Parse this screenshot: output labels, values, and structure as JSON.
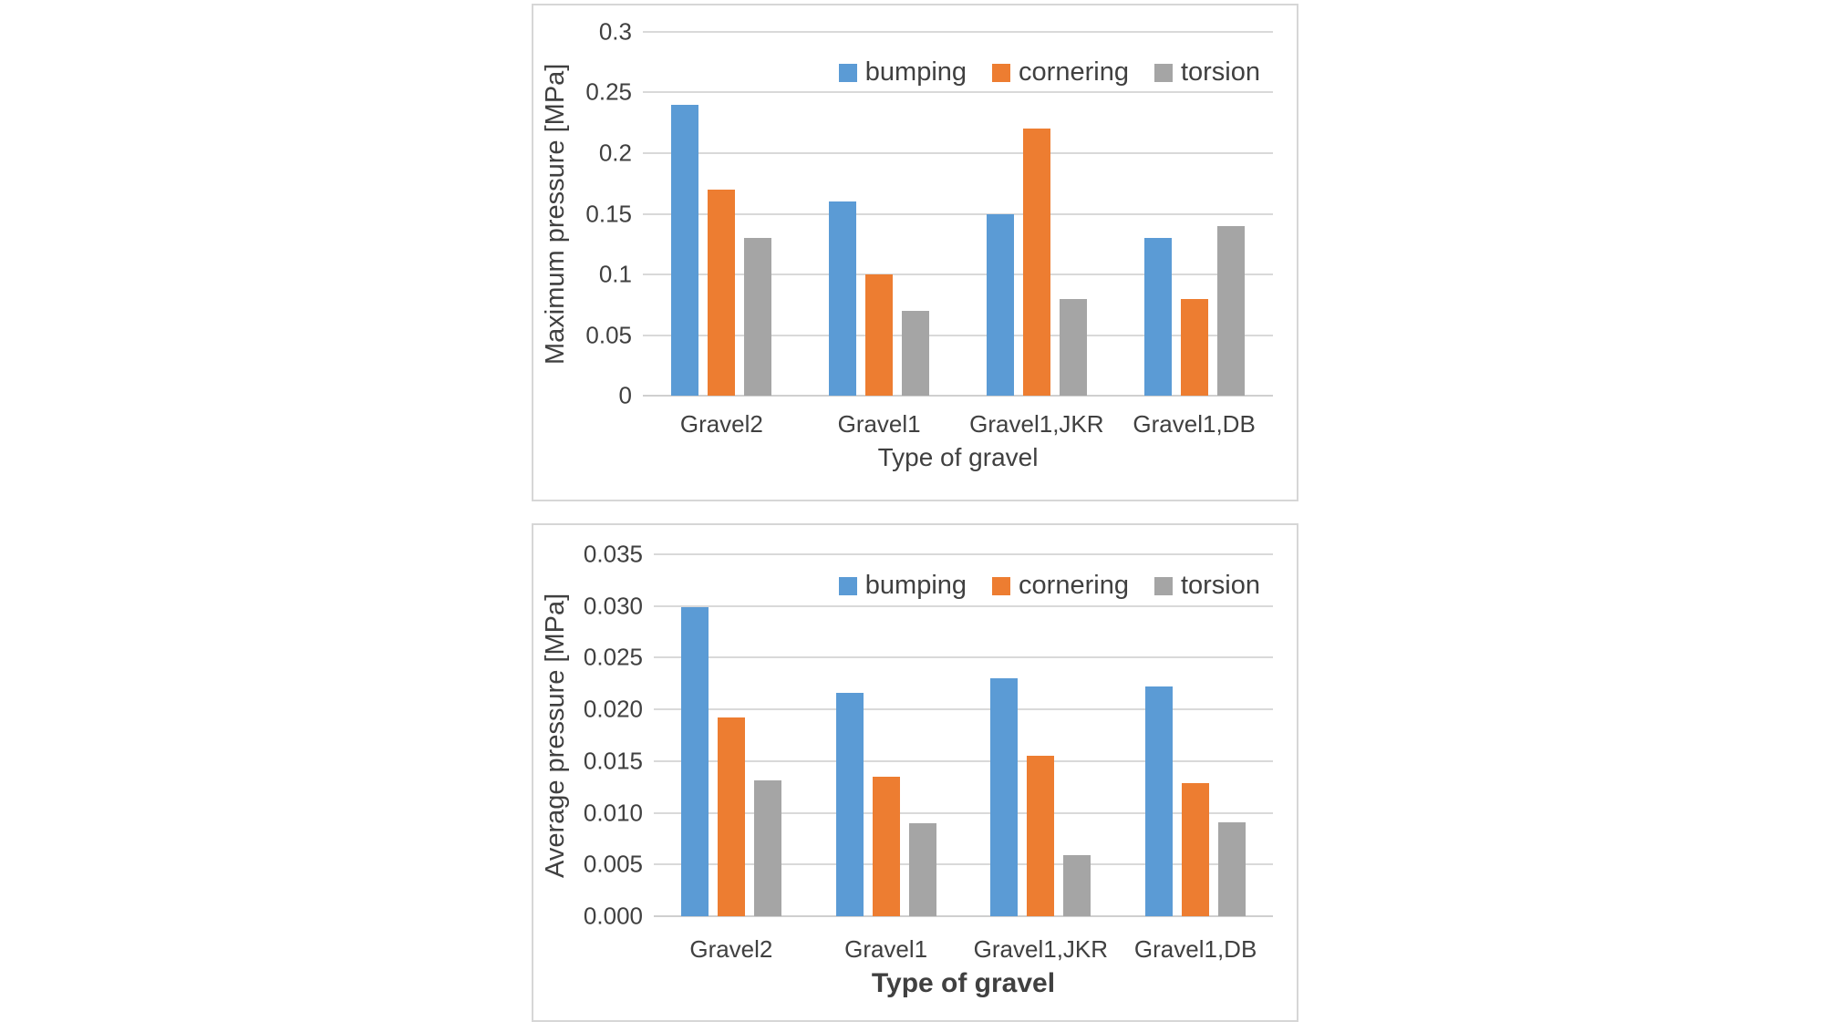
{
  "page": {
    "background": "#ffffff"
  },
  "colors": {
    "series_bumping": "#5B9BD5",
    "series_cornering": "#ED7D31",
    "series_torsion": "#A5A5A5",
    "gridline": "#d9d9d9",
    "chart_border": "#d6d6d6",
    "text": "#404040"
  },
  "chart_data": [
    {
      "type": "bar",
      "title": "",
      "categories": [
        "Gravel2",
        "Gravel1",
        "Gravel1,JKR",
        "Gravel1,DB"
      ],
      "series": [
        {
          "name": "bumping",
          "color": "#5B9BD5",
          "values": [
            0.24,
            0.16,
            0.15,
            0.13
          ]
        },
        {
          "name": "cornering",
          "color": "#ED7D31",
          "values": [
            0.17,
            0.1,
            0.22,
            0.08
          ]
        },
        {
          "name": "torsion",
          "color": "#A5A5A5",
          "values": [
            0.13,
            0.07,
            0.08,
            0.14
          ]
        }
      ],
      "xlabel": "Type of gravel",
      "ylabel": "Maximum pressure [MPa]",
      "ylim": [
        0,
        0.3
      ],
      "ytick_values": [
        0.3,
        0.25,
        0.2,
        0.15,
        0.1,
        0.05,
        0
      ],
      "ytick_labels": [
        "0.3",
        "0.25",
        "0.2",
        "0.15",
        "0.1",
        "0.05",
        "0"
      ],
      "grid": true,
      "legend_position": "top-right"
    },
    {
      "type": "bar",
      "title": "",
      "categories": [
        "Gravel2",
        "Gravel1",
        "Gravel1,JKR",
        "Gravel1,DB"
      ],
      "series": [
        {
          "name": "bumping",
          "color": "#5B9BD5",
          "values": [
            0.0299,
            0.0216,
            0.023,
            0.0222
          ]
        },
        {
          "name": "cornering",
          "color": "#ED7D31",
          "values": [
            0.0192,
            0.0135,
            0.0155,
            0.0129
          ]
        },
        {
          "name": "torsion",
          "color": "#A5A5A5",
          "values": [
            0.0131,
            0.009,
            0.0059,
            0.0091
          ]
        }
      ],
      "xlabel": "Type of gravel",
      "ylabel": "Average pressure [MPa]",
      "ylim": [
        0,
        0.035
      ],
      "ytick_values": [
        0.035,
        0.03,
        0.025,
        0.02,
        0.015,
        0.01,
        0.005,
        0
      ],
      "ytick_labels": [
        "0.035",
        "0.030",
        "0.025",
        "0.020",
        "0.015",
        "0.010",
        "0.005",
        "0.000"
      ],
      "grid": true,
      "legend_position": "top-right"
    }
  ]
}
